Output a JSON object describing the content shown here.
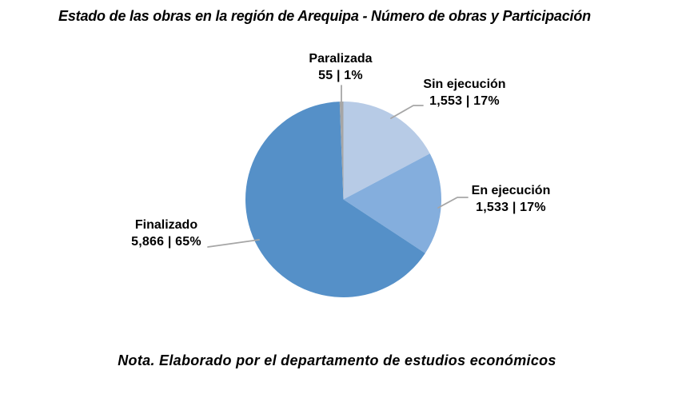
{
  "chart_data": {
    "type": "pie",
    "title": "Estado de las obras en la región de Arequipa - Número de obras y Participación",
    "note": "Nota. Elaborado por el departamento de estudios económicos",
    "legend_position": "none",
    "start_angle_deg": 0,
    "direction": "clockwise",
    "categories": [
      "Sin ejecución",
      "En ejecución",
      "Finalizado",
      "Paralizada"
    ],
    "values": [
      1553,
      1533,
      5866,
      55
    ],
    "slices": [
      {
        "name": "Sin ejecución",
        "value": 1553,
        "percent": "17%",
        "display": "1,553 | 17%",
        "color": "#b7cbe6"
      },
      {
        "name": "En ejecución",
        "value": 1533,
        "percent": "17%",
        "display": "1,533 | 17%",
        "color": "#84aedd"
      },
      {
        "name": "Finalizado",
        "value": 5866,
        "percent": "65%",
        "display": "5,866 | 65%",
        "color": "#5590c8"
      },
      {
        "name": "Paralizada",
        "value": 55,
        "percent": "1%",
        "display": "55 | 1%",
        "color": "#a6a6a6"
      }
    ],
    "leader_line_color": "#a6a6a6"
  }
}
